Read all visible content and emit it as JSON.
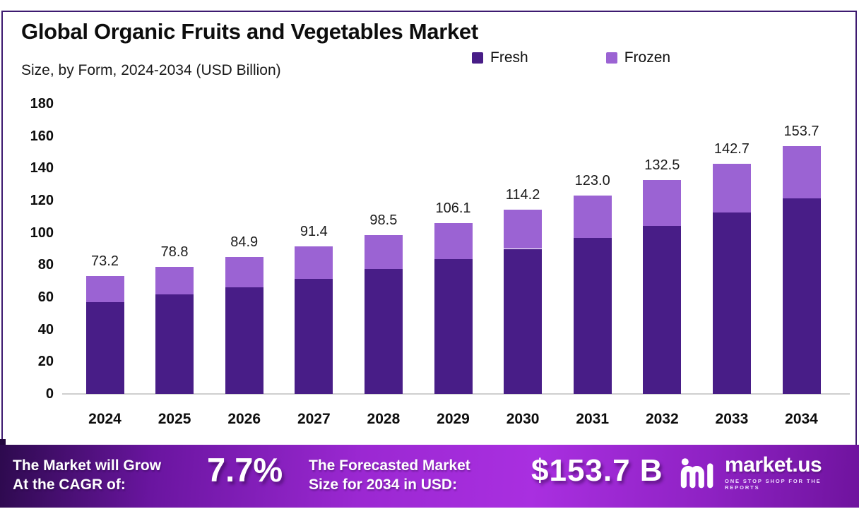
{
  "header": {
    "title": "Global Organic Fruits and Vegetables Market",
    "subtitle": "Size, by Form, 2024-2034 (USD Billion)"
  },
  "chart_data": {
    "type": "bar",
    "stacked": true,
    "title": "Global Organic Fruits and Vegetables Market Size, by Form, 2024-2034 (USD Billion)",
    "categories": [
      "2024",
      "2025",
      "2026",
      "2027",
      "2028",
      "2029",
      "2030",
      "2031",
      "2032",
      "2033",
      "2034"
    ],
    "series": [
      {
        "name": "Fresh",
        "color": "#481d87",
        "values": [
          57.0,
          61.6,
          66.3,
          71.6,
          77.3,
          83.5,
          90.0,
          97.0,
          104.3,
          112.6,
          121.2
        ]
      },
      {
        "name": "Frozen",
        "color": "#9b63d3",
        "values": [
          16.2,
          17.2,
          18.6,
          19.8,
          21.2,
          22.6,
          24.2,
          26.0,
          28.2,
          30.1,
          32.5
        ]
      }
    ],
    "total_labels": [
      "73.2",
      "78.8",
      "84.9",
      "91.4",
      "98.5",
      "106.1",
      "114.2",
      "123.0",
      "132.5",
      "142.7",
      "153.7"
    ],
    "xlabel": "",
    "ylabel": "",
    "ylim": [
      0,
      180
    ],
    "yticks": [
      0,
      20,
      40,
      60,
      80,
      100,
      120,
      140,
      160,
      180
    ],
    "grid": false,
    "legend_position": "top-right"
  },
  "footer": {
    "cagr_label_line1": "The Market will Grow",
    "cagr_label_line2": "At the CAGR of:",
    "cagr_value": "7.7%",
    "forecast_label_line1": "The Forecasted Market",
    "forecast_label_line2": "Size for 2034 in USD:",
    "forecast_value": "$153.7 B",
    "brand": {
      "name": "market.us",
      "tagline": "ONE STOP SHOP FOR THE REPORTS"
    }
  },
  "colors": {
    "fresh": "#481d87",
    "frozen": "#9b63d3",
    "frame_border": "#3d1a70",
    "axis_line": "#cfcfcf",
    "banner_dark": "#2d0a4e",
    "banner_bright": "#a92fe0",
    "banner_tab": "#23073f",
    "text": "#0d0d0d"
  }
}
